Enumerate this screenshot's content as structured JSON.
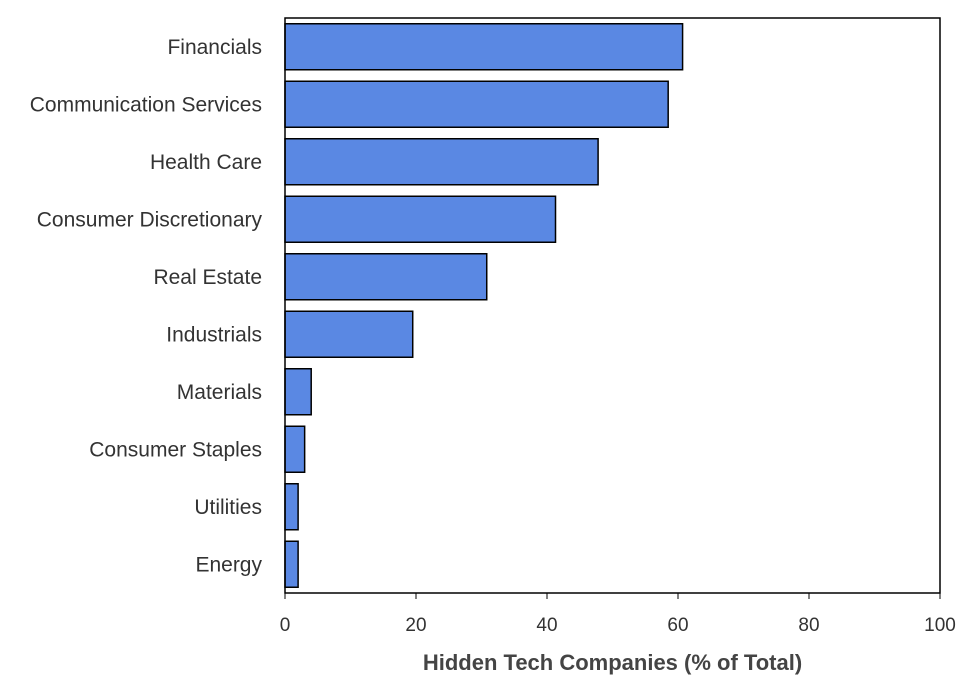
{
  "chart_data": {
    "type": "bar",
    "orientation": "horizontal",
    "categories": [
      "Financials",
      "Communication Services",
      "Health Care",
      "Consumer Discretionary",
      "Real Estate",
      "Industrials",
      "Materials",
      "Consumer Staples",
      "Utilities",
      "Energy"
    ],
    "values": [
      60.7,
      58.5,
      47.8,
      41.3,
      30.8,
      19.5,
      4.0,
      3.0,
      2.0,
      2.0
    ],
    "xlabel": "Hidden Tech Companies (% of Total)",
    "ylabel": "",
    "xlim": [
      0,
      100
    ],
    "xticks": [
      0,
      20,
      40,
      60,
      80,
      100
    ],
    "grid": false,
    "bar_color": "#5A88E3",
    "bar_edge_color": "#000000"
  }
}
